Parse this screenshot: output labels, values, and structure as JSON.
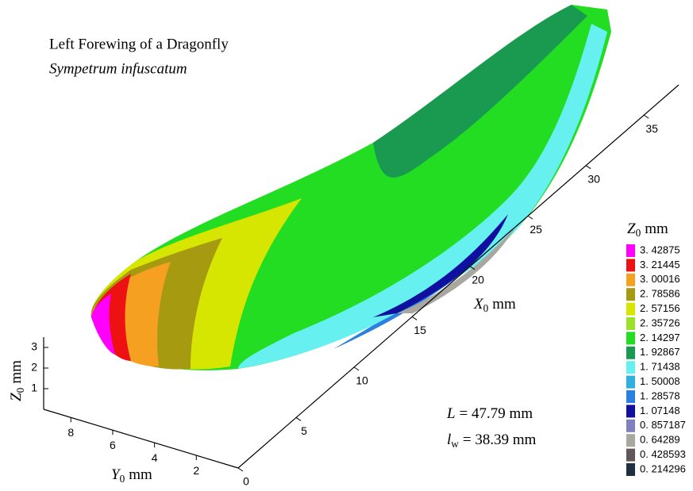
{
  "chart_data": {
    "type": "surface3d",
    "title": "Left Forewing of a Dragonfly",
    "subtitle": "Sympetrum infuscatum",
    "x_label": {
      "var": "X",
      "sub": "0",
      "unit": "mm"
    },
    "y_label": {
      "var": "Y",
      "sub": "0",
      "unit": "mm"
    },
    "z_label": {
      "var": "Z",
      "sub": "0",
      "unit": "mm"
    },
    "xlim": [
      0,
      38
    ],
    "xticks": [
      0,
      5,
      10,
      15,
      20,
      25,
      30,
      35
    ],
    "ylim": [
      0,
      9.3
    ],
    "yticks": [
      2,
      4,
      6,
      8
    ],
    "zlim": [
      0,
      3.5
    ],
    "zticks": [
      1,
      2,
      3
    ],
    "annotations": [
      {
        "var": "L",
        "sub": "",
        "rest": "= 47.79 mm"
      },
      {
        "var": "l",
        "sub": "w",
        "rest": "= 38.39 mm"
      }
    ],
    "legend": {
      "title": {
        "var": "Z",
        "sub": "0",
        "unit": "mm"
      },
      "levels": [
        {
          "value": 3.42875,
          "label": "3. 42875",
          "color": "#ff00ff"
        },
        {
          "value": 3.21445,
          "label": "3. 21445",
          "color": "#ee1111"
        },
        {
          "value": 3.00016,
          "label": "3. 00016",
          "color": "#f5a020"
        },
        {
          "value": 2.78586,
          "label": "2. 78586",
          "color": "#a59a10"
        },
        {
          "value": 2.57156,
          "label": "2. 57156",
          "color": "#d7e600"
        },
        {
          "value": 2.35726,
          "label": "2. 35726",
          "color": "#9be02a"
        },
        {
          "value": 2.14297,
          "label": "2. 14297",
          "color": "#22dd22"
        },
        {
          "value": 1.92867,
          "label": "1. 92867",
          "color": "#1a9a50"
        },
        {
          "value": 1.71438,
          "label": "1. 71438",
          "color": "#66f0f0"
        },
        {
          "value": 1.50008,
          "label": "1. 50008",
          "color": "#30b0e0"
        },
        {
          "value": 1.28578,
          "label": "1. 28578",
          "color": "#2a80e0"
        },
        {
          "value": 1.07148,
          "label": "1. 07148",
          "color": "#1010a0"
        },
        {
          "value": 0.857187,
          "label": "0. 857187",
          "color": "#8080c0"
        },
        {
          "value": 0.64289,
          "label": "0. 64289",
          "color": "#a8a8a0"
        },
        {
          "value": 0.428593,
          "label": "0. 428593",
          "color": "#605858"
        },
        {
          "value": 0.214296,
          "label": "0. 214296",
          "color": "#203040"
        }
      ]
    }
  }
}
